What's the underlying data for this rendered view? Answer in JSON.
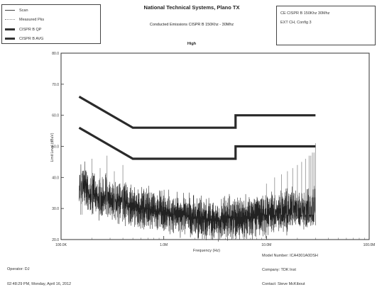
{
  "legend": {
    "items": [
      {
        "label": "Scan",
        "color": "#444444"
      },
      {
        "label": "Measured Pks",
        "color": "#888888"
      },
      {
        "label": "CISPR B QP",
        "color": "#333333"
      },
      {
        "label": "CISPR B AVG",
        "color": "#333333"
      }
    ]
  },
  "header": {
    "title": "National Technical Systems, Plano TX",
    "subtitle": "Conducted Emissions CISPR B 150Khz - 30Mhz",
    "subtitle2": "High"
  },
  "info_box": {
    "line1": "CE CISPR B 150Khz 30Mhz",
    "line2": "EXT CH, Config 3"
  },
  "footer": {
    "operator": "Operator: DJ",
    "timestamp": "02:48:29 PM, Monday, April 16, 2012",
    "model": "Model Number: ICA4301A0DSH",
    "company": "Company: TDK Inst",
    "contact": "Contact: Steve McKibout"
  },
  "chart_data": {
    "type": "line",
    "title": "",
    "xlabel": "Frequency (Hz)",
    "ylabel": "Limit Level (dBuV)",
    "xscale": "log",
    "xlim": [
      100000,
      100000000
    ],
    "ylim": [
      20,
      80
    ],
    "x_tick_labels": [
      "100.0K",
      "1.0M",
      "10.0M",
      "100.0M"
    ],
    "y_tick_labels": [
      "20.0",
      "30.0",
      "40.0",
      "50.0",
      "60.0",
      "70.0",
      "80.0"
    ],
    "y_ticks": [
      20,
      30,
      40,
      50,
      60,
      70,
      80
    ],
    "grid": false,
    "legend_position": "top-left",
    "series": [
      {
        "name": "CISPR B QP",
        "x": [
          150000,
          500000,
          500000,
          5000000,
          5000000,
          30000000
        ],
        "y": [
          66,
          56,
          56,
          56,
          60,
          60
        ]
      },
      {
        "name": "CISPR B AVG",
        "x": [
          150000,
          500000,
          500000,
          5000000,
          5000000,
          30000000
        ],
        "y": [
          56,
          46,
          46,
          46,
          50,
          50
        ]
      },
      {
        "name": "Scan",
        "x": [
          150000,
          170000,
          190000,
          210000,
          240000,
          270000,
          300000,
          350000,
          400000,
          450000,
          500000,
          600000,
          700000,
          800000,
          1000000,
          1300000,
          1600000,
          2000000,
          2500000,
          3000000,
          3500000,
          4000000,
          5000000,
          6000000,
          7000000,
          8000000,
          10000000,
          12000000,
          14000000,
          16000000,
          18000000,
          20000000,
          22000000,
          25000000,
          28000000,
          30000000
        ],
        "y": [
          36,
          38,
          34,
          35,
          33,
          34,
          33,
          32,
          33,
          31,
          31,
          30,
          30,
          29,
          29,
          28,
          28,
          27,
          27,
          26,
          26,
          27,
          27,
          27,
          27,
          28,
          28,
          29,
          29,
          29,
          30,
          30,
          29,
          30,
          30,
          30
        ]
      },
      {
        "name": "Measured Pks",
        "x": [
          155000,
          160000,
          200000,
          240000,
          280000,
          330000,
          400000,
          10000000,
          12000000,
          14000000,
          16000000,
          18000000,
          20000000,
          22000000,
          24000000,
          26000000,
          27000000,
          28000000,
          29000000,
          30000000
        ],
        "y": [
          41,
          40,
          46,
          43,
          47,
          42,
          44,
          38,
          40,
          41,
          42,
          43,
          44,
          45,
          46,
          47,
          47,
          48,
          48,
          51
        ]
      }
    ]
  }
}
